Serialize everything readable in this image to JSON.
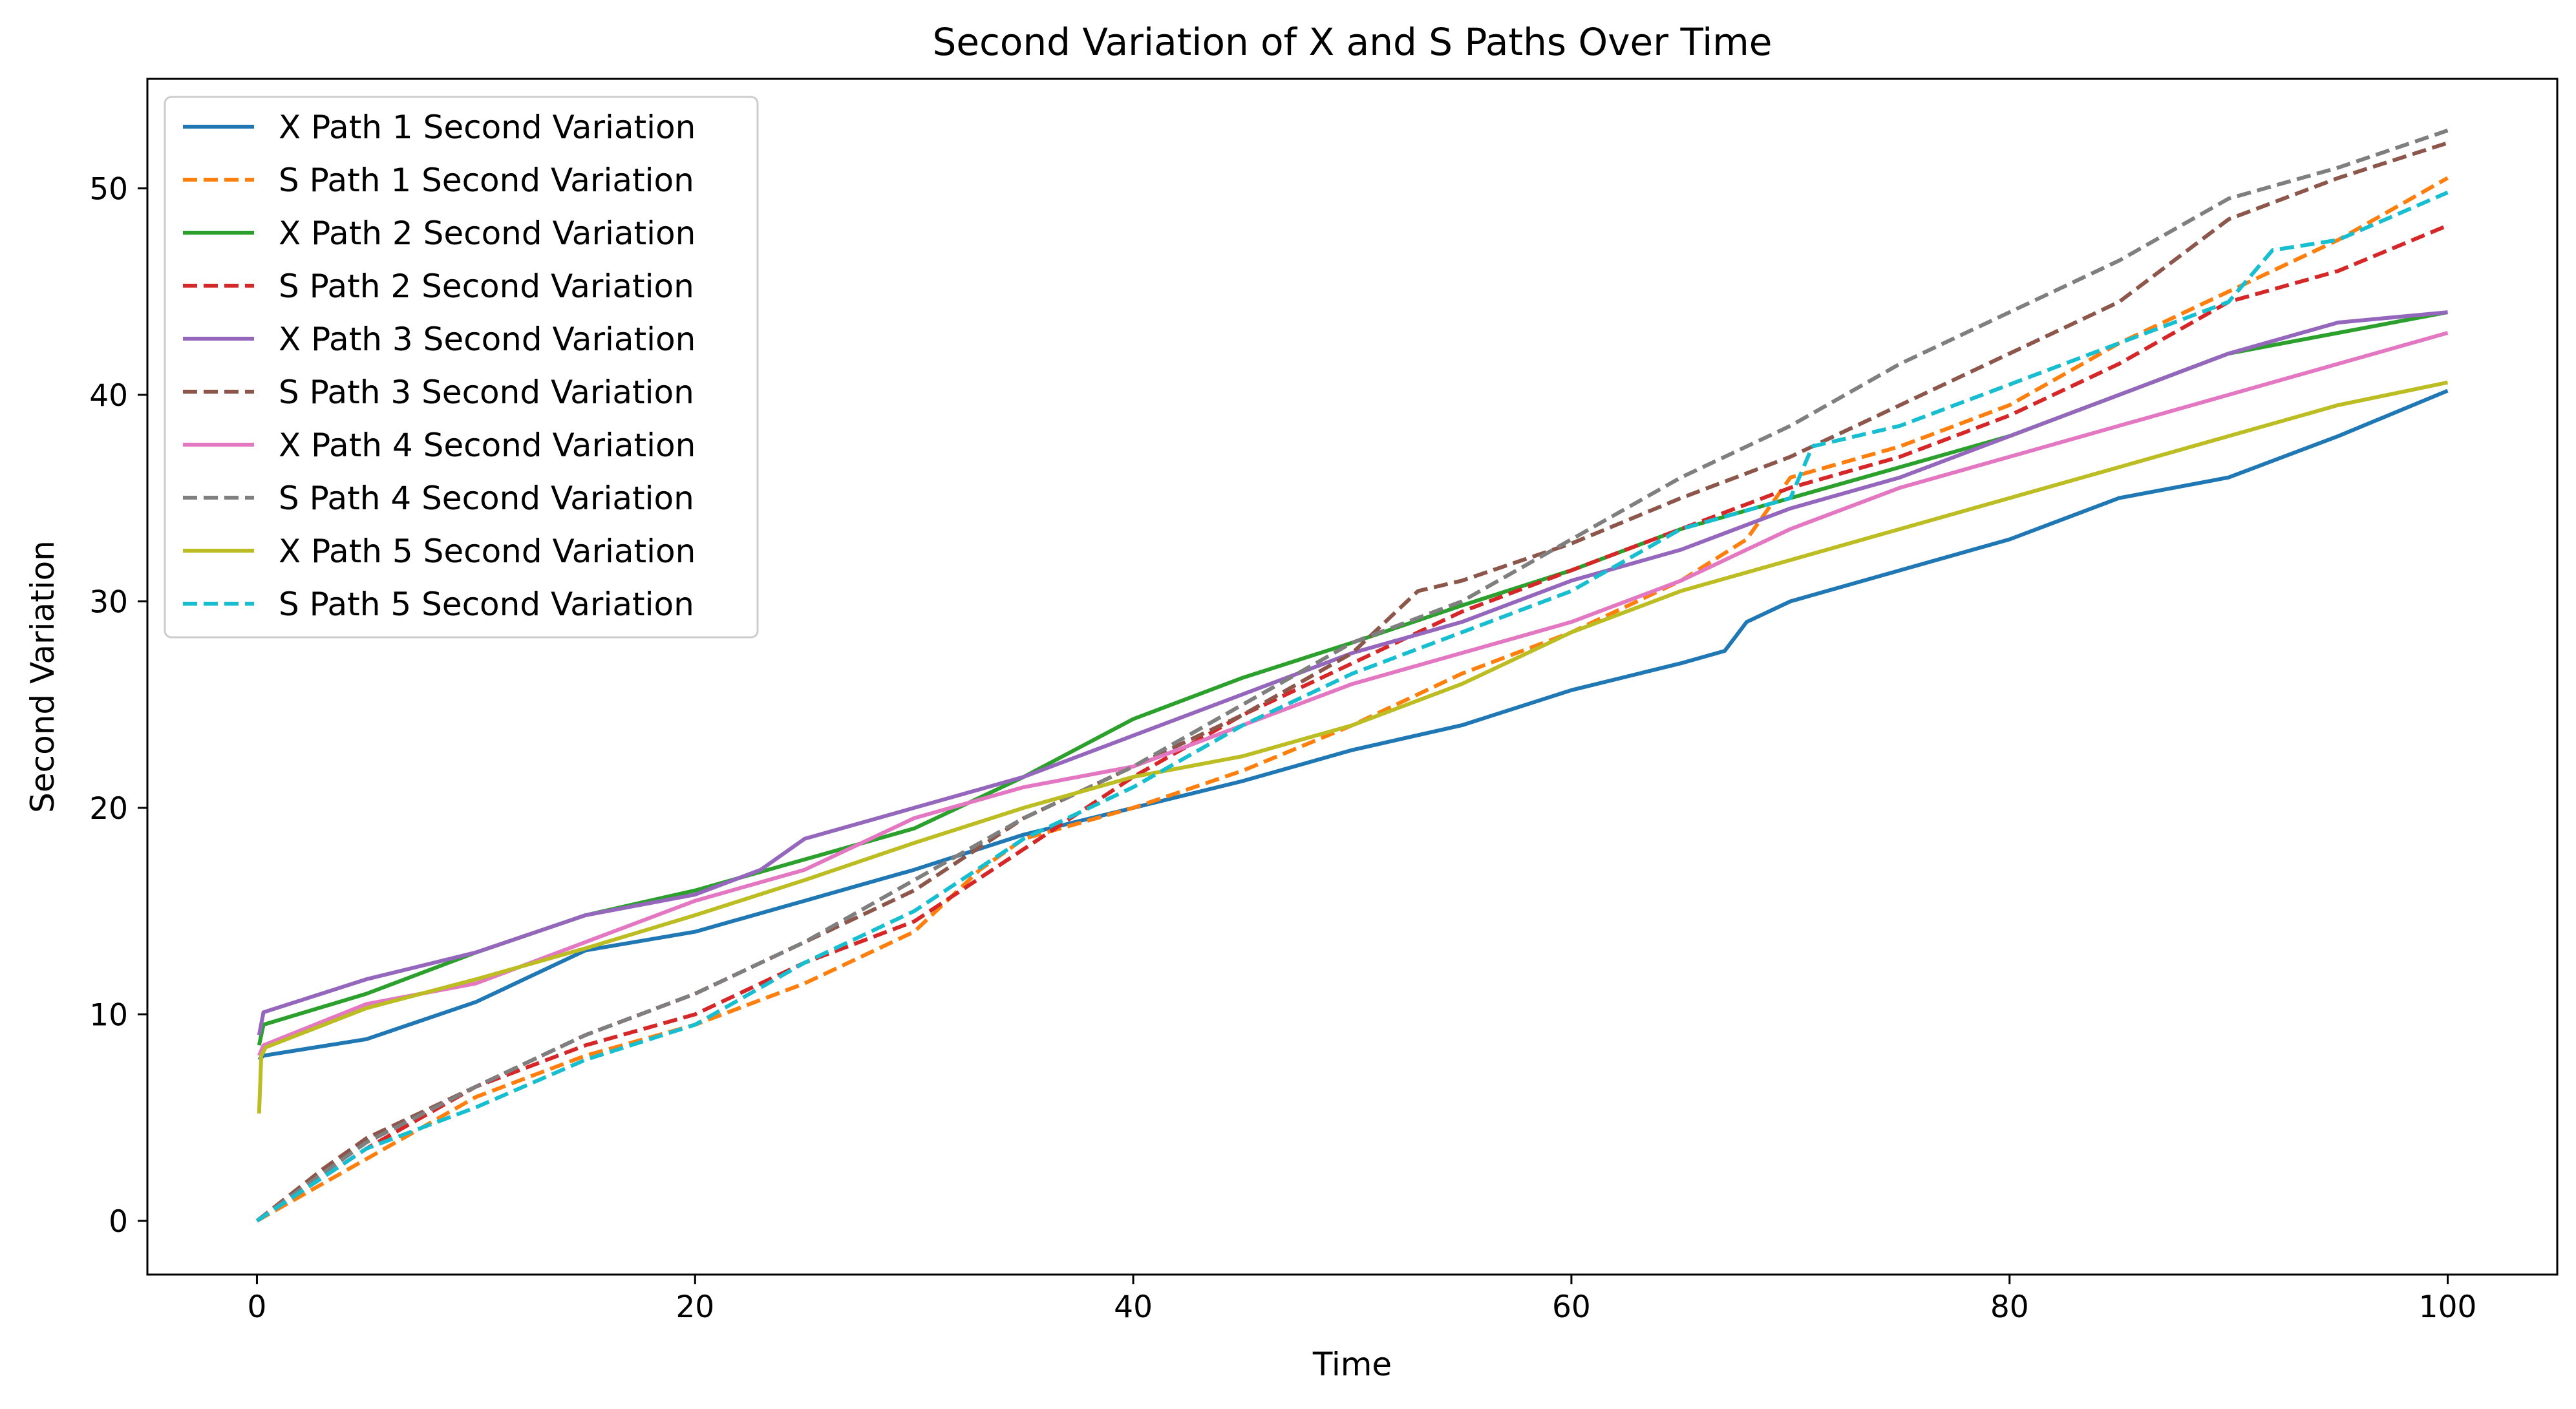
{
  "chart_data": {
    "type": "line",
    "title": "Second Variation of X and S Paths Over Time",
    "xlabel": "Time",
    "ylabel": "Second Variation",
    "xlim": [
      -5,
      105
    ],
    "ylim": [
      -2.6,
      55.3
    ],
    "xticks": [
      0,
      20,
      40,
      60,
      80,
      100
    ],
    "yticks": [
      0,
      10,
      20,
      30,
      40,
      50
    ],
    "grid": false,
    "legend_position": "top-left",
    "series": [
      {
        "name": "X Path 1 Second Variation",
        "color": "#1f77b4",
        "style": "solid",
        "x": [
          0.1,
          0.3,
          5,
          10,
          15,
          20,
          25,
          30,
          35,
          40,
          45,
          50,
          55,
          60,
          65,
          67,
          68,
          70,
          75,
          80,
          85,
          90,
          95,
          100
        ],
        "y": [
          7.8,
          8.0,
          8.8,
          10.6,
          13.1,
          14.0,
          15.5,
          17.0,
          18.7,
          20.0,
          21.3,
          22.8,
          24.0,
          25.7,
          27.0,
          27.6,
          29.0,
          30.0,
          31.5,
          33.0,
          35.0,
          36.0,
          38.0,
          40.2
        ]
      },
      {
        "name": "S Path 1 Second Variation",
        "color": "#ff7f0e",
        "style": "dashed",
        "x": [
          0,
          5,
          10,
          15,
          20,
          25,
          30,
          33,
          35,
          40,
          45,
          50,
          55,
          60,
          65,
          68,
          70,
          75,
          80,
          85,
          90,
          95,
          100
        ],
        "y": [
          0.0,
          3.0,
          6.0,
          8.0,
          9.5,
          11.5,
          14.0,
          17.0,
          18.5,
          20.0,
          21.8,
          24.0,
          26.5,
          28.5,
          31.0,
          33.0,
          36.0,
          37.5,
          39.5,
          42.5,
          45.0,
          47.5,
          50.5
        ]
      },
      {
        "name": "X Path 2 Second Variation",
        "color": "#2ca02c",
        "style": "solid",
        "x": [
          0.1,
          0.3,
          5,
          10,
          15,
          20,
          25,
          30,
          35,
          40,
          45,
          50,
          55,
          60,
          65,
          70,
          75,
          80,
          85,
          90,
          95,
          100
        ],
        "y": [
          8.5,
          9.5,
          11.0,
          13.0,
          14.8,
          16.0,
          17.5,
          19.0,
          21.5,
          24.3,
          26.3,
          28.0,
          29.8,
          31.5,
          33.5,
          35.0,
          36.5,
          38.0,
          40.0,
          42.0,
          43.0,
          44.0
        ]
      },
      {
        "name": "S Path 2 Second Variation",
        "color": "#d62728",
        "style": "dashed",
        "x": [
          0,
          5,
          10,
          15,
          20,
          25,
          30,
          35,
          40,
          45,
          50,
          55,
          60,
          65,
          70,
          75,
          80,
          85,
          90,
          95,
          100
        ],
        "y": [
          0.0,
          3.5,
          6.5,
          8.5,
          10.0,
          12.5,
          14.5,
          18.0,
          21.5,
          24.5,
          27.0,
          29.5,
          31.5,
          33.5,
          35.5,
          37.0,
          39.0,
          41.5,
          44.5,
          46.0,
          48.2
        ]
      },
      {
        "name": "X Path 3 Second Variation",
        "color": "#9467bd",
        "style": "solid",
        "x": [
          0.1,
          0.3,
          5,
          10,
          15,
          20,
          23,
          25,
          30,
          35,
          40,
          45,
          50,
          55,
          60,
          65,
          70,
          75,
          80,
          85,
          90,
          95,
          100
        ],
        "y": [
          9.0,
          10.1,
          11.7,
          13.0,
          14.8,
          15.8,
          17.0,
          18.5,
          20.0,
          21.5,
          23.5,
          25.5,
          27.5,
          29.0,
          31.0,
          32.5,
          34.5,
          36.0,
          38.0,
          40.0,
          42.0,
          43.5,
          44.0
        ]
      },
      {
        "name": "S Path 3 Second Variation",
        "color": "#8c564b",
        "style": "dashed",
        "x": [
          0,
          3,
          5,
          10,
          15,
          20,
          25,
          30,
          35,
          40,
          45,
          50,
          53,
          55,
          60,
          65,
          70,
          75,
          80,
          85,
          90,
          95,
          100
        ],
        "y": [
          0.0,
          2.5,
          4.0,
          6.5,
          9.0,
          11.0,
          13.5,
          16.0,
          19.5,
          22.0,
          24.5,
          27.5,
          30.5,
          31.0,
          32.8,
          35.0,
          37.0,
          39.5,
          42.0,
          44.5,
          48.5,
          50.5,
          52.2
        ]
      },
      {
        "name": "X Path 4 Second Variation",
        "color": "#e377c2",
        "style": "solid",
        "x": [
          0.1,
          0.3,
          5,
          10,
          15,
          20,
          25,
          30,
          35,
          40,
          45,
          50,
          55,
          60,
          65,
          70,
          75,
          80,
          85,
          90,
          95,
          100
        ],
        "y": [
          8.0,
          8.5,
          10.5,
          11.5,
          13.5,
          15.5,
          17.0,
          19.5,
          21.0,
          22.0,
          24.0,
          26.0,
          27.5,
          29.0,
          31.0,
          33.5,
          35.5,
          37.0,
          38.5,
          40.0,
          41.5,
          43.0
        ]
      },
      {
        "name": "S Path 4 Second Variation",
        "color": "#7f7f7f",
        "style": "dashed",
        "x": [
          0,
          3,
          5,
          10,
          15,
          20,
          25,
          30,
          35,
          40,
          45,
          50,
          55,
          60,
          65,
          70,
          75,
          80,
          85,
          90,
          95,
          100
        ],
        "y": [
          0.0,
          2.3,
          3.8,
          6.5,
          9.0,
          11.0,
          13.5,
          16.5,
          19.5,
          22.0,
          25.0,
          28.0,
          30.0,
          33.0,
          36.0,
          38.5,
          41.5,
          44.0,
          46.5,
          49.5,
          51.0,
          52.8
        ]
      },
      {
        "name": "X Path 5 Second Variation",
        "color": "#bcbd22",
        "style": "solid",
        "x": [
          0.1,
          0.2,
          0.4,
          5,
          10,
          15,
          20,
          25,
          30,
          35,
          40,
          45,
          50,
          55,
          60,
          65,
          70,
          75,
          80,
          85,
          90,
          95,
          100
        ],
        "y": [
          5.2,
          8.0,
          8.4,
          10.3,
          11.7,
          13.2,
          14.8,
          16.5,
          18.3,
          20.0,
          21.5,
          22.5,
          24.0,
          26.0,
          28.5,
          30.5,
          32.0,
          33.5,
          35.0,
          36.5,
          38.0,
          39.5,
          40.6
        ]
      },
      {
        "name": "S Path 5 Second Variation",
        "color": "#17becf",
        "style": "dashed",
        "x": [
          0,
          5,
          10,
          15,
          20,
          25,
          30,
          35,
          40,
          45,
          50,
          55,
          60,
          65,
          70,
          71,
          75,
          80,
          85,
          90,
          92,
          95,
          100
        ],
        "y": [
          0.0,
          3.5,
          5.5,
          7.8,
          9.5,
          12.5,
          15.0,
          18.5,
          21.0,
          24.0,
          26.5,
          28.5,
          30.5,
          33.5,
          35.0,
          37.5,
          38.5,
          40.5,
          42.5,
          44.5,
          47.0,
          47.5,
          49.8
        ]
      }
    ]
  }
}
